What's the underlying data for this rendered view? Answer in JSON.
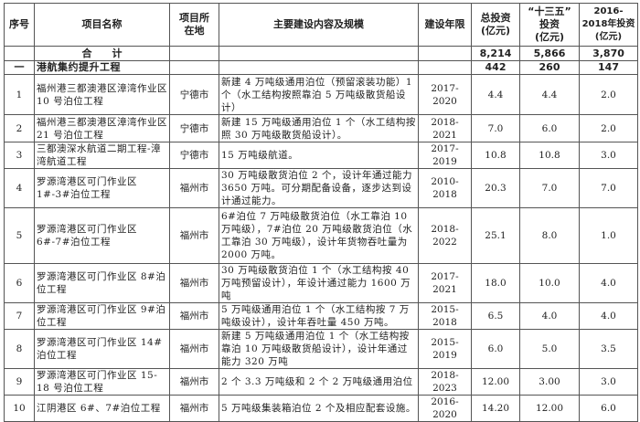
{
  "headers": [
    "序号",
    "项目名称",
    "项目所在地",
    "主要建设内容及规模",
    "建设年限",
    "总投资(亿元)",
    "“十三五”投资(亿元)",
    "2016-2018年投资(亿元)"
  ],
  "header_lines": {
    "loc": [
      "项目",
      "所在地"
    ],
    "total": [
      "总投资",
      "(亿元)"
    ],
    "fyp": [
      "“十三五”",
      "投资",
      "(亿元)"
    ],
    "y1618": [
      "2016-2018",
      "年投资",
      "(亿元)"
    ]
  },
  "total_row": {
    "label": "合　　计",
    "total": "8,214",
    "fyp": "5,866",
    "y1618": "3,870"
  },
  "section_row": {
    "no": "一",
    "label": "港航集约提升工程",
    "total": "442",
    "fyp": "260",
    "y1618": "147"
  },
  "rows": [
    {
      "no": "1",
      "name": "福州港三都澳港区漳湾作业区 10 号泊位工程",
      "loc": "宁德市",
      "content": "新建 4 万吨级通用泊位（预留滚装功能）1 个（水工结构按照靠泊 5 万吨级散货船设计）",
      "years": "2017-2020",
      "total": "4.4",
      "fyp": "4.4",
      "y1618": "2.0"
    },
    {
      "no": "2",
      "name": "福州港三都澳港区漳湾作业区 21 号泊位工程",
      "loc": "宁德市",
      "content": "新建 15 万吨级通用泊位 1 个（水工结构按照 30 万吨级散货船设计）。",
      "years": "2018-2021",
      "total": "7.0",
      "fyp": "6.0",
      "y1618": "2.0"
    },
    {
      "no": "3",
      "name": "三都澳深水航道二期工程-漳湾航道工程",
      "loc": "宁德市",
      "content": "15 万吨级航道。",
      "years": "2017-2019",
      "total": "10.8",
      "fyp": "10.8",
      "y1618": "3.0"
    },
    {
      "no": "4",
      "name": "罗源湾港区可门作业区 1#-3#泊位工程",
      "loc": "福州市",
      "content": "30 万吨级散货泊位 2 个，设计年通过能力 3650 万吨。可分期配备设备，逐步达到设计通过能力。",
      "years": "2010-2018",
      "total": "20.3",
      "fyp": "7.0",
      "y1618": "7.0"
    },
    {
      "no": "5",
      "name": "罗源湾港区可门作业区 6#-7#泊位工程",
      "loc": "福州市",
      "content": "6#泊位 7 万吨级散货泊位（水工靠泊 10 万吨级），7#泊位 20 万吨级散货泊位（水工靠泊 30 万吨级），设计年货物吞吐量为 2000 万吨。",
      "years": "2018-2022",
      "total": "25.1",
      "fyp": "8.0",
      "y1618": "1.0"
    },
    {
      "no": "6",
      "name": "罗源湾港区可门作业区 8#泊位工程",
      "loc": "福州市",
      "content": "30 万吨级散货泊位 1 个（水工结构按 40 万吨预留设计），年设计通过能力 1600 万吨",
      "years": "2017-2021",
      "total": "18.0",
      "fyp": "10.0",
      "y1618": "4.0"
    },
    {
      "no": "7",
      "name": "罗源湾港区可门作业区 9#泊位工程",
      "loc": "福州市",
      "content": "5 万吨级通用泊位 1 个（水工结构按 7 万吨级设计），设计年吞吐量 450 万吨。",
      "years": "2015-2018",
      "total": "6.5",
      "fyp": "4.0",
      "y1618": "4.0"
    },
    {
      "no": "8",
      "name": "罗源湾港区可门作业区 14#泊位工程",
      "loc": "福州市",
      "content": "新建 5 万吨级通用泊位 1 个（水工结构按靠泊 10 万吨级散货船设计），设计年通过能力 320 万吨",
      "years": "2015-2019",
      "total": "6.0",
      "fyp": "5.0",
      "y1618": "3.5"
    },
    {
      "no": "9",
      "name": "罗源湾港区可门作业区 15-18 号泊位工程",
      "loc": "福州市",
      "content": "2 个 3.3 万吨级和 2 个 2 万吨级通用泊位",
      "years": "2018-2023",
      "total": "12.00",
      "fyp": "3.00",
      "y1618": "3.0"
    },
    {
      "no": "10",
      "name": "江阴港区 6#、7#泊位工程",
      "loc": "福州市",
      "content": "5 万吨级集装箱泊位 2 个及相应配套设施。",
      "years": "2016-2020",
      "total": "14.20",
      "fyp": "12.00",
      "y1618": "6.0"
    }
  ]
}
